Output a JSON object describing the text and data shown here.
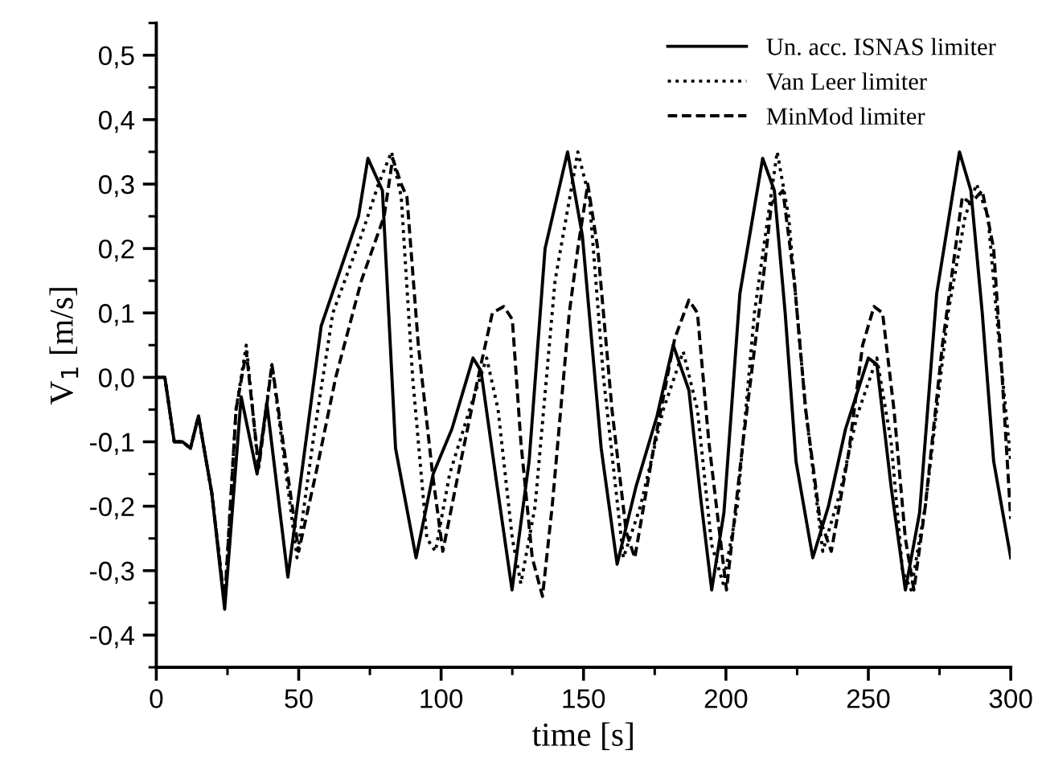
{
  "chart_data": {
    "type": "line",
    "xlabel": "time [s]",
    "ylabel": "V$_{1}$ [m/s]",
    "xlim": [
      0,
      300
    ],
    "xticks": [
      0,
      50,
      100,
      150,
      200,
      250,
      300
    ],
    "ylim": [
      -0.45,
      0.55
    ],
    "yticks": [
      {
        "value": -0.4,
        "label": "-0,4"
      },
      {
        "value": -0.3,
        "label": "-0,3"
      },
      {
        "value": -0.2,
        "label": "-0,2"
      },
      {
        "value": -0.1,
        "label": "-0,1"
      },
      {
        "value": 0.0,
        "label": "0,0"
      },
      {
        "value": 0.1,
        "label": "0,1"
      },
      {
        "value": 0.2,
        "label": "0,2"
      },
      {
        "value": 0.3,
        "label": "0,3"
      },
      {
        "value": 0.4,
        "label": "0,4"
      },
      {
        "value": 0.5,
        "label": "0,5"
      }
    ],
    "grid": false,
    "legend": "top right",
    "marker": "none",
    "series": [
      {
        "name": "Un. acc. ISNAS limiter",
        "color": "#000000",
        "line_style": "solid",
        "x": [
          0,
          3,
          6.3,
          9.2,
          12,
          14.8,
          19.5,
          24,
          29.8,
          35.4,
          38.8,
          46.2,
          57.9,
          71,
          74.3,
          79.4,
          84,
          91.2,
          97.2,
          103.8,
          111.2,
          114,
          119.7,
          124.9,
          130.9,
          136.5,
          144.4,
          149.6,
          156.2,
          161.8,
          168.4,
          175.8,
          181.5,
          187,
          191.2,
          195,
          199.3,
          204.9,
          212.9,
          217,
          220.8,
          224.6,
          230.5,
          236,
          242,
          250,
          253,
          258,
          263,
          268,
          274,
          282,
          286,
          290,
          294,
          300
        ],
        "values": [
          0,
          0,
          -0.1,
          -0.1,
          -0.11,
          -0.06,
          -0.18,
          -0.36,
          -0.03,
          -0.15,
          -0.04,
          -0.31,
          0.08,
          0.25,
          0.34,
          0.29,
          -0.11,
          -0.28,
          -0.15,
          -0.08,
          0.03,
          0.01,
          -0.17,
          -0.33,
          -0.13,
          0.2,
          0.35,
          0.22,
          -0.11,
          -0.29,
          -0.17,
          -0.06,
          0.05,
          -0.02,
          -0.19,
          -0.33,
          -0.21,
          0.13,
          0.34,
          0.29,
          0.1,
          -0.13,
          -0.28,
          -0.2,
          -0.08,
          0.03,
          0.02,
          -0.17,
          -0.33,
          -0.21,
          0.13,
          0.35,
          0.29,
          0.1,
          -0.13,
          -0.28
        ]
      },
      {
        "name": "Van Leer limiter",
        "color": "#000000",
        "line_style": "dotted",
        "x": [
          0,
          3,
          6.3,
          9.2,
          12,
          14.8,
          19.5,
          24,
          28,
          31.6,
          35.8,
          40.6,
          49.4,
          55,
          62,
          72,
          78,
          82.6,
          86,
          90,
          95,
          98,
          103,
          110,
          116,
          120,
          125,
          128,
          133,
          140,
          148,
          152,
          157,
          164,
          170,
          178,
          185,
          190,
          195,
          199,
          204,
          210,
          218,
          222,
          228,
          234,
          240,
          246,
          253,
          258,
          262,
          265,
          270,
          278,
          284,
          288,
          292,
          296,
          300
        ],
        "values": [
          0,
          0,
          -0.1,
          -0.1,
          -0.11,
          -0.06,
          -0.18,
          -0.35,
          -0.05,
          0.05,
          -0.14,
          0.02,
          -0.28,
          -0.1,
          0.1,
          0.22,
          0.3,
          0.35,
          0.28,
          0.0,
          -0.25,
          -0.27,
          -0.15,
          -0.05,
          0.03,
          -0.05,
          -0.25,
          -0.32,
          -0.2,
          0.15,
          0.35,
          0.28,
          0.0,
          -0.28,
          -0.2,
          -0.05,
          0.04,
          -0.05,
          -0.26,
          -0.32,
          -0.2,
          0.1,
          0.35,
          0.25,
          -0.05,
          -0.27,
          -0.18,
          -0.06,
          0.03,
          -0.1,
          -0.3,
          -0.33,
          -0.2,
          0.1,
          0.25,
          0.3,
          0.25,
          0.05,
          -0.13
        ]
      },
      {
        "name": "MinMod limiter",
        "color": "#000000",
        "line_style": "dashed",
        "x": [
          0,
          3,
          6.3,
          9.2,
          12,
          14.8,
          19.5,
          24,
          28,
          31.6,
          36,
          40.6,
          50,
          56,
          63,
          72,
          80,
          83,
          86,
          88,
          92,
          97,
          100.6,
          106,
          113,
          118,
          122,
          125,
          128,
          132,
          135.6,
          139,
          145,
          148,
          151.5,
          155,
          160,
          165,
          168,
          175,
          182,
          187,
          190,
          194,
          198,
          200.2,
          206,
          213,
          216,
          220,
          224,
          228,
          233,
          237,
          243,
          248,
          252,
          255,
          259,
          263,
          266,
          270,
          276,
          283,
          286,
          290,
          294,
          297,
          300
        ],
        "values": [
          0,
          0,
          -0.1,
          -0.1,
          -0.11,
          -0.06,
          -0.18,
          -0.35,
          -0.05,
          0.04,
          -0.14,
          0.02,
          -0.27,
          -0.15,
          0.0,
          0.15,
          0.25,
          0.34,
          0.3,
          0.28,
          0.05,
          -0.15,
          -0.27,
          -0.15,
          0.0,
          0.1,
          0.11,
          0.09,
          -0.1,
          -0.28,
          -0.34,
          -0.2,
          0.1,
          0.2,
          0.3,
          0.2,
          -0.05,
          -0.24,
          -0.28,
          -0.1,
          0.06,
          0.12,
          0.1,
          -0.1,
          -0.25,
          -0.33,
          -0.1,
          0.15,
          0.27,
          0.29,
          0.15,
          -0.05,
          -0.22,
          -0.27,
          -0.12,
          0.05,
          0.11,
          0.1,
          -0.05,
          -0.25,
          -0.33,
          -0.2,
          0.05,
          0.28,
          0.27,
          0.29,
          0.2,
          0.0,
          -0.22
        ]
      }
    ]
  }
}
